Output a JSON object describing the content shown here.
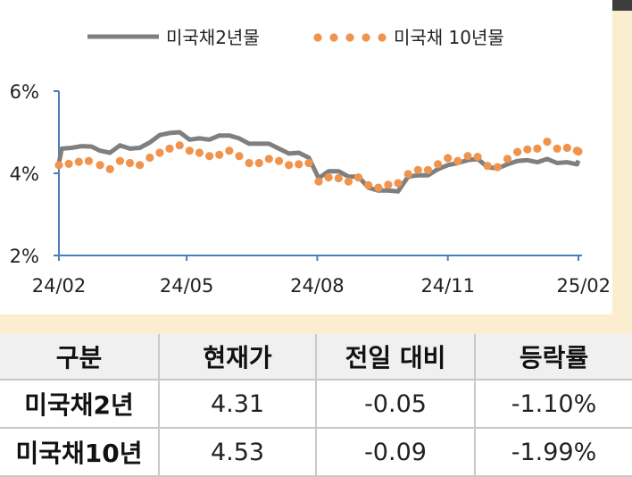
{
  "chart_data": {
    "type": "line",
    "legend": {
      "placement": "top",
      "items": [
        "미국채2년물",
        "미국채 10년물"
      ]
    },
    "x_ticks": [
      "24/02",
      "24/05",
      "24/08",
      "24/11",
      "25/02"
    ],
    "y_ticks": [
      "2%",
      "4%",
      "6%"
    ],
    "ylim": [
      2,
      6
    ],
    "xlim": [
      "2024-02-01",
      "2025-02-01"
    ],
    "grid": false,
    "colors": {
      "2y": "#7f7f7f",
      "10y": "#f0944d",
      "axis": "#4a7ebb"
    },
    "series": [
      {
        "name": "미국채2년물",
        "style": "solid",
        "points": [
          [
            "2024-02-01",
            4.25
          ],
          [
            "2024-02-03",
            4.6
          ],
          [
            "2024-02-10",
            4.62
          ],
          [
            "2024-02-17",
            4.66
          ],
          [
            "2024-02-24",
            4.65
          ],
          [
            "2024-03-01",
            4.55
          ],
          [
            "2024-03-08",
            4.5
          ],
          [
            "2024-03-15",
            4.68
          ],
          [
            "2024-03-22",
            4.6
          ],
          [
            "2024-03-29",
            4.62
          ],
          [
            "2024-04-05",
            4.75
          ],
          [
            "2024-04-12",
            4.93
          ],
          [
            "2024-04-19",
            4.98
          ],
          [
            "2024-04-26",
            5.0
          ],
          [
            "2024-05-03",
            4.82
          ],
          [
            "2024-05-10",
            4.85
          ],
          [
            "2024-05-17",
            4.82
          ],
          [
            "2024-05-24",
            4.92
          ],
          [
            "2024-05-31",
            4.92
          ],
          [
            "2024-06-07",
            4.85
          ],
          [
            "2024-06-14",
            4.72
          ],
          [
            "2024-06-21",
            4.72
          ],
          [
            "2024-06-28",
            4.72
          ],
          [
            "2024-07-05",
            4.6
          ],
          [
            "2024-07-12",
            4.48
          ],
          [
            "2024-07-19",
            4.5
          ],
          [
            "2024-07-26",
            4.38
          ],
          [
            "2024-08-02",
            3.88
          ],
          [
            "2024-08-09",
            4.05
          ],
          [
            "2024-08-16",
            4.05
          ],
          [
            "2024-08-23",
            3.92
          ],
          [
            "2024-08-30",
            3.92
          ],
          [
            "2024-09-06",
            3.65
          ],
          [
            "2024-09-13",
            3.58
          ],
          [
            "2024-09-20",
            3.58
          ],
          [
            "2024-09-27",
            3.56
          ],
          [
            "2024-10-04",
            3.92
          ],
          [
            "2024-10-11",
            3.95
          ],
          [
            "2024-10-18",
            3.95
          ],
          [
            "2024-10-25",
            4.1
          ],
          [
            "2024-11-01",
            4.2
          ],
          [
            "2024-11-08",
            4.25
          ],
          [
            "2024-11-15",
            4.32
          ],
          [
            "2024-11-22",
            4.35
          ],
          [
            "2024-11-29",
            4.15
          ],
          [
            "2024-12-06",
            4.12
          ],
          [
            "2024-12-13",
            4.22
          ],
          [
            "2024-12-20",
            4.3
          ],
          [
            "2024-12-27",
            4.32
          ],
          [
            "2025-01-03",
            4.27
          ],
          [
            "2025-01-10",
            4.35
          ],
          [
            "2025-01-17",
            4.25
          ],
          [
            "2025-01-24",
            4.27
          ],
          [
            "2025-01-31",
            4.22
          ],
          [
            "2025-02-01",
            4.31
          ]
        ]
      },
      {
        "name": "미국채 10년물",
        "style": "dotted",
        "points": [
          [
            "2024-02-01",
            4.2
          ],
          [
            "2024-02-08",
            4.23
          ],
          [
            "2024-02-15",
            4.28
          ],
          [
            "2024-02-22",
            4.3
          ],
          [
            "2024-03-01",
            4.2
          ],
          [
            "2024-03-08",
            4.1
          ],
          [
            "2024-03-15",
            4.3
          ],
          [
            "2024-03-22",
            4.25
          ],
          [
            "2024-03-29",
            4.2
          ],
          [
            "2024-04-05",
            4.38
          ],
          [
            "2024-04-12",
            4.5
          ],
          [
            "2024-04-19",
            4.6
          ],
          [
            "2024-04-26",
            4.68
          ],
          [
            "2024-05-03",
            4.55
          ],
          [
            "2024-05-10",
            4.5
          ],
          [
            "2024-05-17",
            4.42
          ],
          [
            "2024-05-24",
            4.45
          ],
          [
            "2024-05-31",
            4.55
          ],
          [
            "2024-06-07",
            4.42
          ],
          [
            "2024-06-14",
            4.25
          ],
          [
            "2024-06-21",
            4.25
          ],
          [
            "2024-06-28",
            4.35
          ],
          [
            "2024-07-05",
            4.3
          ],
          [
            "2024-07-12",
            4.2
          ],
          [
            "2024-07-19",
            4.22
          ],
          [
            "2024-07-26",
            4.25
          ],
          [
            "2024-08-02",
            3.8
          ],
          [
            "2024-08-09",
            3.9
          ],
          [
            "2024-08-16",
            3.88
          ],
          [
            "2024-08-23",
            3.8
          ],
          [
            "2024-08-30",
            3.9
          ],
          [
            "2024-09-06",
            3.71
          ],
          [
            "2024-09-13",
            3.65
          ],
          [
            "2024-09-20",
            3.72
          ],
          [
            "2024-09-27",
            3.76
          ],
          [
            "2024-10-04",
            3.98
          ],
          [
            "2024-10-11",
            4.08
          ],
          [
            "2024-10-18",
            4.08
          ],
          [
            "2024-10-25",
            4.22
          ],
          [
            "2024-11-01",
            4.37
          ],
          [
            "2024-11-08",
            4.3
          ],
          [
            "2024-11-15",
            4.42
          ],
          [
            "2024-11-22",
            4.4
          ],
          [
            "2024-11-29",
            4.18
          ],
          [
            "2024-12-06",
            4.15
          ],
          [
            "2024-12-13",
            4.35
          ],
          [
            "2024-12-20",
            4.52
          ],
          [
            "2024-12-27",
            4.58
          ],
          [
            "2025-01-03",
            4.6
          ],
          [
            "2025-01-10",
            4.77
          ],
          [
            "2025-01-17",
            4.6
          ],
          [
            "2025-01-24",
            4.62
          ],
          [
            "2025-01-31",
            4.55
          ],
          [
            "2025-02-01",
            4.53
          ]
        ]
      }
    ]
  },
  "table": {
    "headers": [
      "구분",
      "현재가",
      "전일 대비",
      "등락률"
    ],
    "rows": [
      {
        "name": "미국채2년",
        "price": "4.31",
        "change": "-0.05",
        "rate": "-1.10%"
      },
      {
        "name": "미국채10년",
        "price": "4.53",
        "change": "-0.09",
        "rate": "-1.99%"
      }
    ]
  }
}
